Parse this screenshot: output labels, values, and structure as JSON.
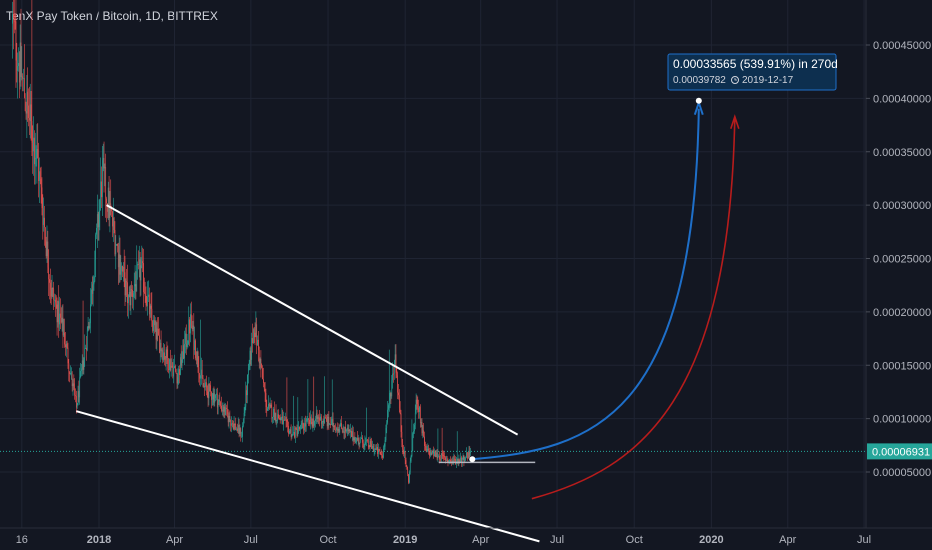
{
  "header": {
    "title": "TenX Pay Token / Bitcoin, 1D, BITTREX"
  },
  "colors": {
    "background": "#131722",
    "candle_up": "#26a69a",
    "candle_down": "#ef5350",
    "trendline": "#ffffff",
    "projection_blue": "#1e6fc9",
    "projection_red": "#b71c1c",
    "price_line": "#26a69a",
    "label_bg": "#0d2f4f"
  },
  "chart_data": {
    "type": "candlestick",
    "title": "TenX Pay Token / Bitcoin, 1D, BITTREX",
    "x_tick_labels": [
      "16",
      "2018",
      "Apr",
      "Jul",
      "Oct",
      "2019",
      "Apr",
      "Jul",
      "Oct",
      "2020",
      "Apr",
      "Jul"
    ],
    "x_tick_dates": [
      "2017-10-01",
      "2018-01-01",
      "2018-04-01",
      "2018-07-01",
      "2018-10-01",
      "2019-01-01",
      "2019-04-01",
      "2019-07-01",
      "2019-10-01",
      "2020-01-01",
      "2020-04-01",
      "2020-07-01"
    ],
    "y_tick_labels": [
      "0.00005000",
      "0.00010000",
      "0.00015000",
      "0.00020000",
      "0.00025000",
      "0.00030000",
      "0.00035000",
      "0.00040000",
      "0.00045000"
    ],
    "ylim": [
      0.0,
      0.00048
    ],
    "last_price": {
      "value": 6.931e-05,
      "label": "0.00006931"
    },
    "price_path": [
      [
        "2017-09-20",
        0.00047
      ],
      [
        "2017-10-05",
        0.0004
      ],
      [
        "2017-10-20",
        0.00034
      ],
      [
        "2017-11-05",
        0.00022
      ],
      [
        "2017-11-20",
        0.00018
      ],
      [
        "2017-12-05",
        0.00011
      ],
      [
        "2017-12-20",
        0.00019
      ],
      [
        "2018-01-05",
        0.00033
      ],
      [
        "2018-01-20",
        0.00027
      ],
      [
        "2018-02-05",
        0.00021
      ],
      [
        "2018-02-20",
        0.00024
      ],
      [
        "2018-03-05",
        0.00019
      ],
      [
        "2018-03-20",
        0.00016
      ],
      [
        "2018-04-05",
        0.00014
      ],
      [
        "2018-04-20",
        0.00019
      ],
      [
        "2018-05-05",
        0.00013
      ],
      [
        "2018-05-20",
        0.00012
      ],
      [
        "2018-06-05",
        0.0001
      ],
      [
        "2018-06-20",
        8.5e-05
      ],
      [
        "2018-07-05",
        0.00019
      ],
      [
        "2018-07-20",
        0.00011
      ],
      [
        "2018-08-05",
        0.0001
      ],
      [
        "2018-08-20",
        8.5e-05
      ],
      [
        "2018-09-05",
        9.5e-05
      ],
      [
        "2018-09-20",
        0.0001
      ],
      [
        "2018-10-05",
        9.5e-05
      ],
      [
        "2018-10-20",
        9e-05
      ],
      [
        "2018-11-05",
        8e-05
      ],
      [
        "2018-11-20",
        7.5e-05
      ],
      [
        "2018-12-05",
        6.5e-05
      ],
      [
        "2018-12-20",
        0.00016
      ],
      [
        "2018-12-28",
        8e-05
      ],
      [
        "2019-01-05",
        4.2e-05
      ],
      [
        "2019-01-15",
        0.00012
      ],
      [
        "2019-01-25",
        7e-05
      ],
      [
        "2019-02-10",
        6.5e-05
      ],
      [
        "2019-02-25",
        6e-05
      ],
      [
        "2019-03-10",
        6.2e-05
      ],
      [
        "2019-03-20",
        6.9e-05
      ]
    ],
    "trendlines": [
      {
        "from": [
          "2018-01-10",
          0.0003
        ],
        "to": [
          "2019-05-15",
          8.5e-05
        ]
      },
      {
        "from": [
          "2017-12-05",
          0.000107
        ],
        "to": [
          "2019-06-10",
          -1.5e-05
        ]
      },
      {
        "from": [
          "2019-02-10",
          5.9e-05
        ],
        "to": [
          "2019-06-05",
          5.9e-05
        ]
      }
    ],
    "projection": {
      "label": "0.00033565 (539.91%) in 270d",
      "sublabel_value": "0.00039782",
      "sublabel_date": "2019-12-17",
      "start": [
        "2019-03-22",
        6.2e-05
      ],
      "end": [
        "2019-12-17",
        0.00039782
      ]
    }
  }
}
